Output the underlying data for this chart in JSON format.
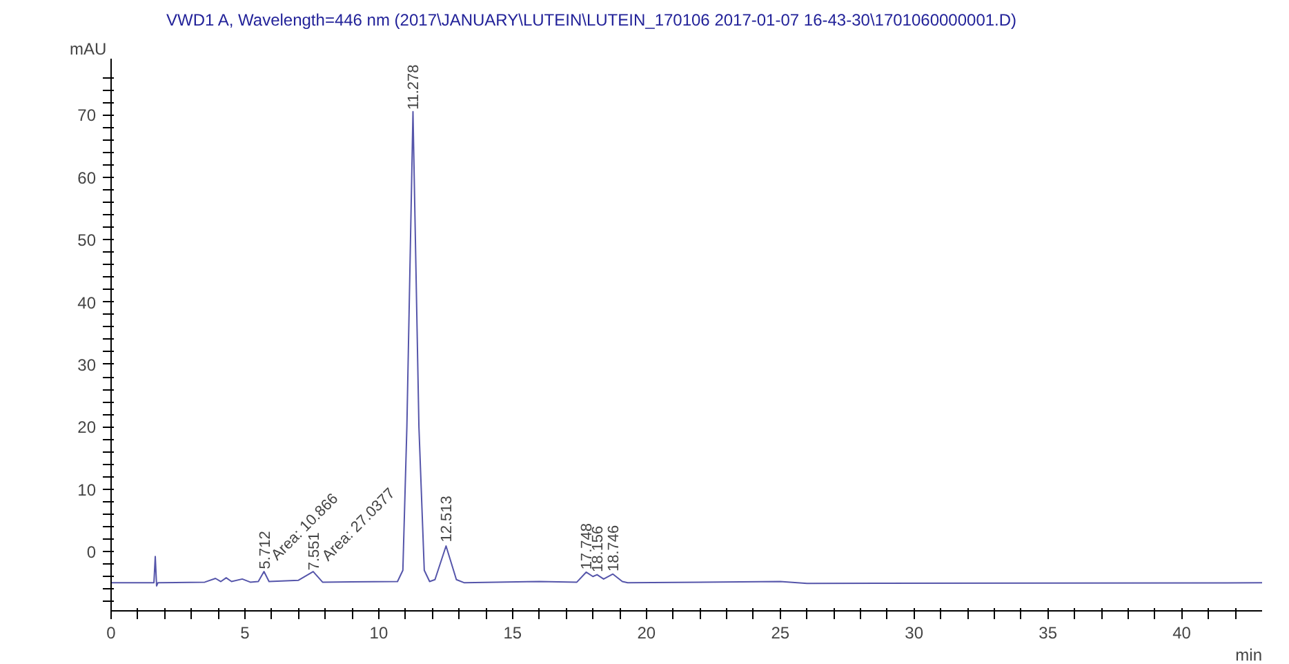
{
  "chart_data": {
    "type": "line",
    "title": "VWD1 A, Wavelength=446 nm (2017\\JANUARY\\LUTEIN\\LUTEIN_170106 2017-01-07 16-43-30\\1701060000001.D)",
    "xlabel": "min",
    "ylabel": "mAU",
    "x": [
      0,
      1.6,
      1.65,
      1.7,
      1.75,
      3.5,
      3.9,
      4.1,
      4.3,
      4.5,
      4.9,
      5.2,
      5.5,
      5.712,
      5.9,
      7.0,
      7.55,
      7.9,
      10.7,
      10.9,
      11.05,
      11.278,
      11.5,
      11.7,
      11.9,
      12.1,
      12.513,
      12.9,
      13.2,
      16,
      17.4,
      17.748,
      18.0,
      18.156,
      18.4,
      18.746,
      19.1,
      19.3,
      25,
      26,
      43
    ],
    "series": [
      {
        "color": "#5555aa",
        "values": [
          -5,
          -5,
          -0.8,
          -5.5,
          -5,
          -4.9,
          -4.3,
          -4.8,
          -4.2,
          -4.8,
          -4.4,
          -4.9,
          -4.8,
          -3.2,
          -4.8,
          -4.6,
          -3.2,
          -4.9,
          -4.8,
          -3,
          20,
          70.5,
          20,
          -3,
          -4.8,
          -4.5,
          0.9,
          -4.5,
          -5,
          -4.8,
          -4.9,
          -3.3,
          -4.0,
          -3.7,
          -4.4,
          -3.6,
          -4.8,
          -5,
          -4.8,
          -5.1,
          -5
        ]
      }
    ],
    "xlim": [
      0,
      43
    ],
    "ylim": [
      -9.5,
      79
    ],
    "xticks": [
      0,
      {
        "value": 1,
        "label": null
      },
      {
        "value": 2,
        "label": null
      },
      {
        "value": 3,
        "label": null
      },
      {
        "value": 4,
        "label": null
      },
      5,
      {
        "value": 6,
        "label": null
      },
      {
        "value": 7,
        "label": null
      },
      {
        "value": 8,
        "label": null
      },
      {
        "value": 9,
        "label": null
      },
      10,
      {
        "value": 11,
        "label": null
      },
      {
        "value": 12,
        "label": null
      },
      {
        "value": 13,
        "label": null
      },
      {
        "value": 14,
        "label": null
      },
      15,
      {
        "value": 16,
        "label": null
      },
      {
        "value": 17,
        "label": null
      },
      {
        "value": 18,
        "label": null
      },
      {
        "value": 19,
        "label": null
      },
      20,
      {
        "value": 21,
        "label": null
      },
      {
        "value": 22,
        "label": null
      },
      {
        "value": 23,
        "label": null
      },
      {
        "value": 24,
        "label": null
      },
      25,
      {
        "value": 26,
        "label": null
      },
      {
        "value": 27,
        "label": null
      },
      {
        "value": 28,
        "label": null
      },
      {
        "value": 29,
        "label": null
      },
      30,
      {
        "value": 31,
        "label": null
      },
      {
        "value": 32,
        "label": null
      },
      {
        "value": 33,
        "label": null
      },
      {
        "value": 34,
        "label": null
      },
      35,
      {
        "value": 36,
        "label": null
      },
      {
        "value": 37,
        "label": null
      },
      {
        "value": 38,
        "label": null
      },
      {
        "value": 39,
        "label": null
      },
      40,
      {
        "value": 41,
        "label": null
      },
      {
        "value": 42,
        "label": null
      }
    ],
    "yticks": [
      {
        "value": -8,
        "label": null
      },
      {
        "value": -6,
        "label": null
      },
      {
        "value": -4,
        "label": null
      },
      {
        "value": -2,
        "label": null
      },
      0,
      {
        "value": 2,
        "label": null
      },
      {
        "value": 4,
        "label": null
      },
      {
        "value": 6,
        "label": null
      },
      {
        "value": 8,
        "label": null
      },
      10,
      {
        "value": 12,
        "label": null
      },
      {
        "value": 14,
        "label": null
      },
      {
        "value": 16,
        "label": null
      },
      {
        "value": 18,
        "label": null
      },
      20,
      {
        "value": 22,
        "label": null
      },
      {
        "value": 24,
        "label": null
      },
      {
        "value": 26,
        "label": null
      },
      {
        "value": 28,
        "label": null
      },
      30,
      {
        "value": 32,
        "label": null
      },
      {
        "value": 34,
        "label": null
      },
      {
        "value": 36,
        "label": null
      },
      {
        "value": 38,
        "label": null
      },
      40,
      {
        "value": 42,
        "label": null
      },
      {
        "value": 44,
        "label": null
      },
      {
        "value": 46,
        "label": null
      },
      {
        "value": 48,
        "label": null
      },
      50,
      {
        "value": 52,
        "label": null
      },
      {
        "value": 54,
        "label": null
      },
      {
        "value": 56,
        "label": null
      },
      {
        "value": 58,
        "label": null
      },
      60,
      {
        "value": 62,
        "label": null
      },
      {
        "value": 64,
        "label": null
      },
      {
        "value": 66,
        "label": null
      },
      {
        "value": 68,
        "label": null
      },
      70,
      {
        "value": 72,
        "label": null
      },
      {
        "value": 74,
        "label": null
      },
      {
        "value": 76,
        "label": null
      }
    ],
    "annotations": [
      {
        "text": "5.712",
        "x": 5.712,
        "y": -2.8
      },
      {
        "text": "Area: 10.866",
        "x": 6.1,
        "y": -4.8
      },
      {
        "text": "7.551",
        "x": 7.55,
        "y": -3.0
      },
      {
        "text": "Area: 27.0377",
        "x": 8.0,
        "y": -4.9
      },
      {
        "text": "11.278",
        "x": 11.278,
        "y": 70.8
      },
      {
        "text": "12.513",
        "x": 12.513,
        "y": 1.5
      },
      {
        "text": "17.748",
        "x": 17.748,
        "y": -2.9
      },
      {
        "text": "18.156",
        "x": 18.156,
        "y": -3.3
      },
      {
        "text": "18.746",
        "x": 18.746,
        "y": -3.2
      }
    ],
    "grid": false,
    "line_style": "solid",
    "marker": "none"
  }
}
